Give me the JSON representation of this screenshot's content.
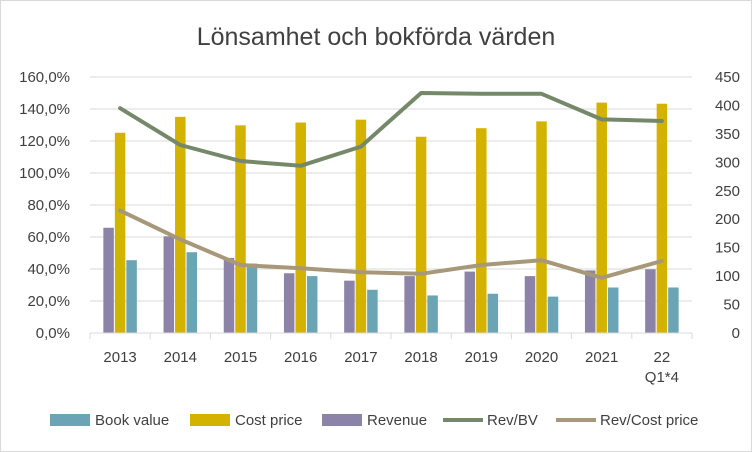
{
  "chart_data": {
    "type": "bar",
    "title": "Lönsamhet och bokförda värden",
    "xlabel": "",
    "ylabel": "",
    "categories": [
      "2013",
      "2014",
      "2015",
      "2016",
      "2017",
      "2018",
      "2019",
      "2020",
      "2021",
      "22\nQ1*4"
    ],
    "category_labels": [
      [
        "2013"
      ],
      [
        "2014"
      ],
      [
        "2015"
      ],
      [
        "2016"
      ],
      [
        "2017"
      ],
      [
        "2018"
      ],
      [
        "2019"
      ],
      [
        "2020"
      ],
      [
        "2021"
      ],
      [
        "22",
        "Q1*4"
      ]
    ],
    "left_axis": {
      "ylim": [
        0,
        160
      ],
      "ticks": [
        0,
        20,
        40,
        60,
        80,
        100,
        120,
        140,
        160
      ],
      "tick_labels": [
        "0,0%",
        "20,0%",
        "40,0%",
        "60,0%",
        "80,0%",
        "100,0%",
        "120,0%",
        "140,0%",
        "160,0%"
      ]
    },
    "right_axis": {
      "ylim": [
        0,
        450
      ],
      "ticks": [
        0,
        50,
        100,
        150,
        200,
        250,
        300,
        350,
        400,
        450
      ],
      "tick_labels": [
        "0",
        "50",
        "100",
        "150",
        "200",
        "250",
        "300",
        "350",
        "400",
        "450"
      ]
    },
    "bar_series": [
      {
        "name": "Revenue",
        "color": "#8c84a8",
        "axis": "right",
        "values": [
          185,
          170,
          132,
          105,
          92,
          100,
          108,
          100,
          110,
          112
        ]
      },
      {
        "name": "Cost price",
        "color": "#d4b300",
        "axis": "right",
        "values": [
          352,
          380,
          365,
          370,
          375,
          345,
          360,
          372,
          405,
          403
        ]
      },
      {
        "name": "Book value",
        "color": "#6ba5b5",
        "axis": "right",
        "values": [
          128,
          142,
          122,
          100,
          76,
          66,
          69,
          64,
          80,
          80
        ]
      }
    ],
    "line_series": [
      {
        "name": "Rev/BV",
        "color": "#75896a",
        "axis": "left",
        "values": [
          140.5,
          117.5,
          107.5,
          104.5,
          116.5,
          150,
          149.5,
          149.5,
          133.5,
          132.5
        ]
      },
      {
        "name": "Rev/Cost price",
        "color": "#a8987a",
        "axis": "left",
        "values": [
          76.5,
          58.5,
          42.5,
          40.5,
          38,
          37,
          42.5,
          45.5,
          34.5,
          45
        ]
      }
    ],
    "legend": {
      "position": "bottom",
      "order": [
        "Book value",
        "Cost price",
        "Revenue",
        "Rev/BV",
        "Rev/Cost price"
      ]
    },
    "grid": true
  }
}
